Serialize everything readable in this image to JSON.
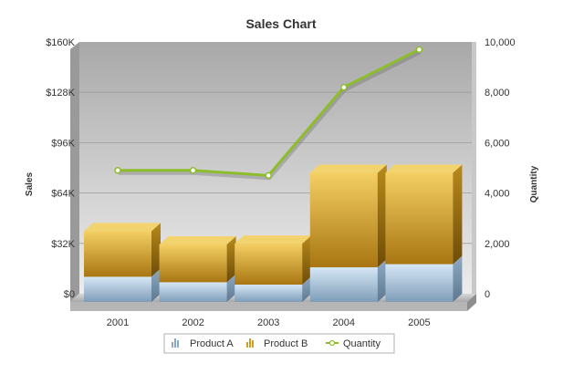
{
  "chart_data": {
    "type": "bar",
    "title": "Sales Chart",
    "categories": [
      "2001",
      "2002",
      "2003",
      "2004",
      "2005"
    ],
    "series": [
      {
        "name": "Product A",
        "type": "stacked-bar",
        "axis": "left",
        "values": [
          16000,
          12500,
          11000,
          22000,
          24000
        ],
        "color": "#a9c8e6"
      },
      {
        "name": "Product B",
        "type": "stacked-bar",
        "axis": "left",
        "values": [
          29000,
          24000,
          26000,
          60000,
          58000
        ],
        "color": "#e6b830"
      },
      {
        "name": "Quantity",
        "type": "line",
        "axis": "right",
        "values": [
          4500,
          4500,
          4300,
          7800,
          9300
        ],
        "color": "#8dbd2a"
      }
    ],
    "ylabel": "Sales",
    "y2label": "Quantity",
    "ylim": [
      0,
      160000
    ],
    "y2lim": [
      0,
      10000
    ],
    "y_ticks": [
      "$0",
      "$32K",
      "$64K",
      "$96K",
      "$128K",
      "$160K"
    ],
    "y2_ticks": [
      "0",
      "2,000",
      "4,000",
      "6,000",
      "8,000",
      "10,000"
    ],
    "grid": true,
    "legend_position": "bottom",
    "legend": [
      "Product A",
      "Product B",
      "Quantity"
    ]
  }
}
